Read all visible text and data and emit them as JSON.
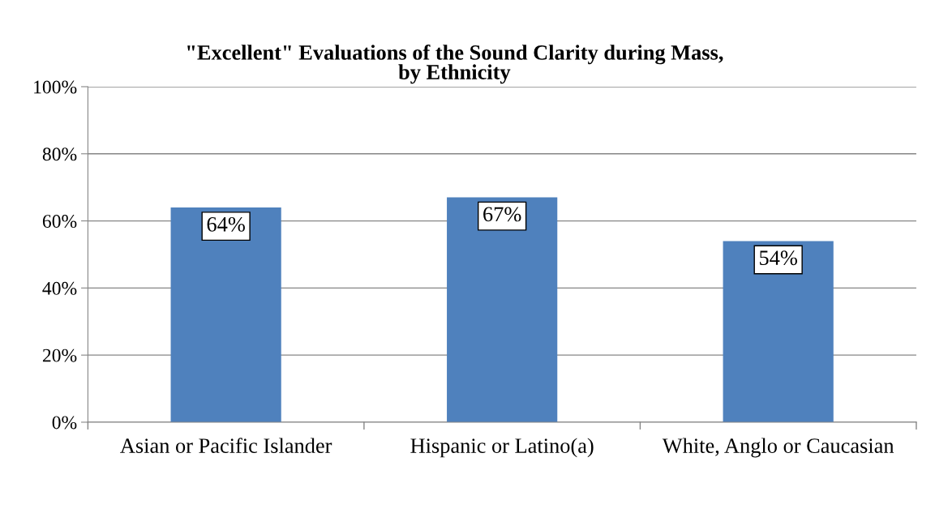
{
  "chart_data": {
    "type": "bar",
    "title": "\"Excellent\" Evaluations of the Sound Clarity during Mass,\nby Ethnicity",
    "categories": [
      "Asian or Pacific Islander",
      "Hispanic or Latino(a)",
      "White, Anglo or Caucasian"
    ],
    "values": [
      64,
      67,
      54
    ],
    "color": "#4f81bd",
    "value_labels": [
      "64%",
      "67%",
      "54%"
    ],
    "ylim": [
      0,
      100
    ],
    "yticks": [
      {
        "value": 0,
        "label": "0%"
      },
      {
        "value": 20,
        "label": "20%"
      },
      {
        "value": 40,
        "label": "40%"
      },
      {
        "value": 60,
        "label": "60%"
      },
      {
        "value": 80,
        "label": "80%"
      },
      {
        "value": 100,
        "label": "100%"
      }
    ],
    "grid": "y",
    "legend": false
  }
}
